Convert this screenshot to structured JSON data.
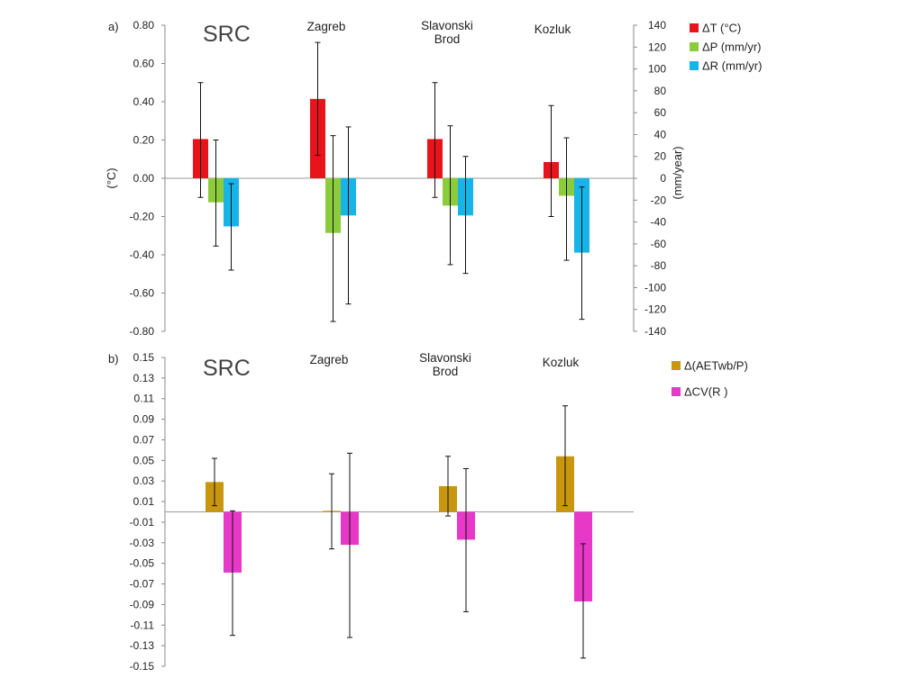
{
  "chart_data": [
    {
      "type": "bar",
      "panel_label": "a)",
      "title": "SRC",
      "categories": [
        "",
        "Zagreb",
        "Slavonski Brod",
        "Kozluk"
      ],
      "category_lines": [
        [
          ""
        ],
        [
          "Zagreb"
        ],
        [
          "Slavonski",
          "Brod"
        ],
        [
          "Kozluk"
        ]
      ],
      "ylabel": "(°C)",
      "y2label": "(mm/year)",
      "ylim": [
        -0.8,
        0.8
      ],
      "y2lim": [
        -140,
        140
      ],
      "yticks": [
        "0.80",
        "0.60",
        "0.40",
        "0.20",
        "0.00",
        "-0.20",
        "-0.40",
        "-0.60",
        "-0.80"
      ],
      "y2ticks": [
        "140",
        "120",
        "100",
        "80",
        "60",
        "40",
        "20",
        "0",
        "-20",
        "-40",
        "-60",
        "-80",
        "-100",
        "-120",
        "-140"
      ],
      "legend_position": "top-right",
      "grid": false,
      "series": [
        {
          "name": "ΔT (°C)",
          "axis": "left",
          "color": "#e8131b",
          "values": [
            0.205,
            0.415,
            0.205,
            0.085
          ],
          "err_low": [
            -0.1,
            0.12,
            -0.1,
            -0.2
          ],
          "err_high": [
            0.5,
            0.71,
            0.5,
            0.38
          ]
        },
        {
          "name": "ΔP (mm/yr)",
          "axis": "right",
          "color": "#8ccc3c",
          "values": [
            -22,
            -50,
            -25,
            -16
          ],
          "err_low": [
            -62,
            -131,
            -79,
            -75
          ],
          "err_high": [
            35,
            39,
            48,
            37
          ]
        },
        {
          "name": "ΔR (mm/yr)",
          "axis": "right",
          "color": "#17b4e8",
          "values": [
            -44,
            -34,
            -34,
            -68
          ],
          "err_low": [
            -84,
            -115,
            -87,
            -129
          ],
          "err_high": [
            -5,
            47,
            20,
            -8
          ]
        }
      ]
    },
    {
      "type": "bar",
      "panel_label": "b)",
      "title": "SRC",
      "categories": [
        "",
        "Zagreb",
        "Slavonski Brod",
        "Kozluk"
      ],
      "category_lines": [
        [
          ""
        ],
        [
          "Zagreb"
        ],
        [
          "Slavonski",
          "Brod"
        ],
        [
          "Kozluk"
        ]
      ],
      "ylim": [
        -0.15,
        0.15
      ],
      "yticks": [
        "0.15",
        "0.13",
        "0.11",
        "0.09",
        "0.07",
        "0.05",
        "0.03",
        "0.01",
        "-0.01",
        "-0.03",
        "-0.05",
        "-0.07",
        "-0.09",
        "-0.11",
        "-0.13",
        "-0.15"
      ],
      "legend_position": "top-right",
      "grid": false,
      "series": [
        {
          "name": "Δ(AETwb/P)",
          "color": "#c8960f",
          "values": [
            0.029,
            0.001,
            0.025,
            0.054
          ],
          "err_low": [
            0.006,
            -0.036,
            -0.004,
            0.006
          ],
          "err_high": [
            0.052,
            0.037,
            0.054,
            0.103
          ]
        },
        {
          "name": "ΔCV(R )",
          "color": "#e838c8",
          "values": [
            -0.059,
            -0.032,
            -0.027,
            -0.087
          ],
          "err_low": [
            -0.12,
            -0.122,
            -0.097,
            -0.142
          ],
          "err_high": [
            0.001,
            0.057,
            0.042,
            -0.031
          ]
        }
      ]
    }
  ]
}
